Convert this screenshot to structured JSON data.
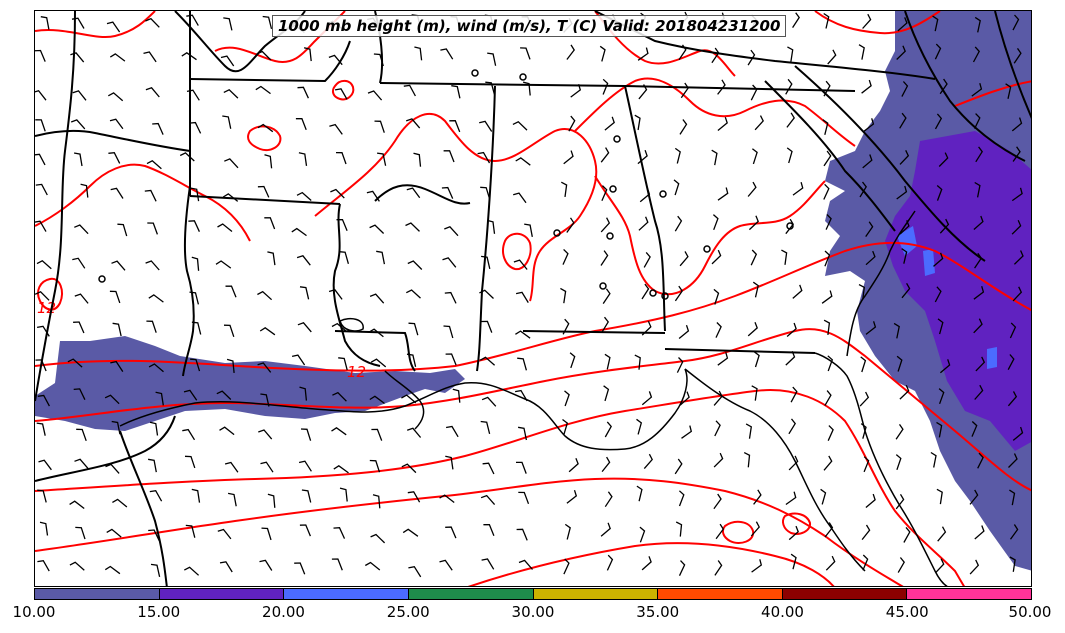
{
  "title": "1000 mb height (m), wind (m/s), T (C) Valid: 201804231200",
  "colorbar": {
    "ticks": [
      "10.00",
      "15.00",
      "20.00",
      "25.00",
      "30.00",
      "35.00",
      "40.00",
      "45.00",
      "50.00"
    ],
    "colors": [
      "#5a5aa6",
      "#6022c0",
      "#4b6bff",
      "#1e8c4b",
      "#ccb200",
      "#ff4a00",
      "#8c0000",
      "#ff3399"
    ]
  },
  "contour_labels": [
    "12",
    "12"
  ],
  "colors": {
    "temperature_contour": "#ff0000",
    "boundaries": "#000000",
    "shading_low": "#5a5aa6",
    "shading_mid": "#6022c0",
    "shading_high": "#4b6bff"
  }
}
